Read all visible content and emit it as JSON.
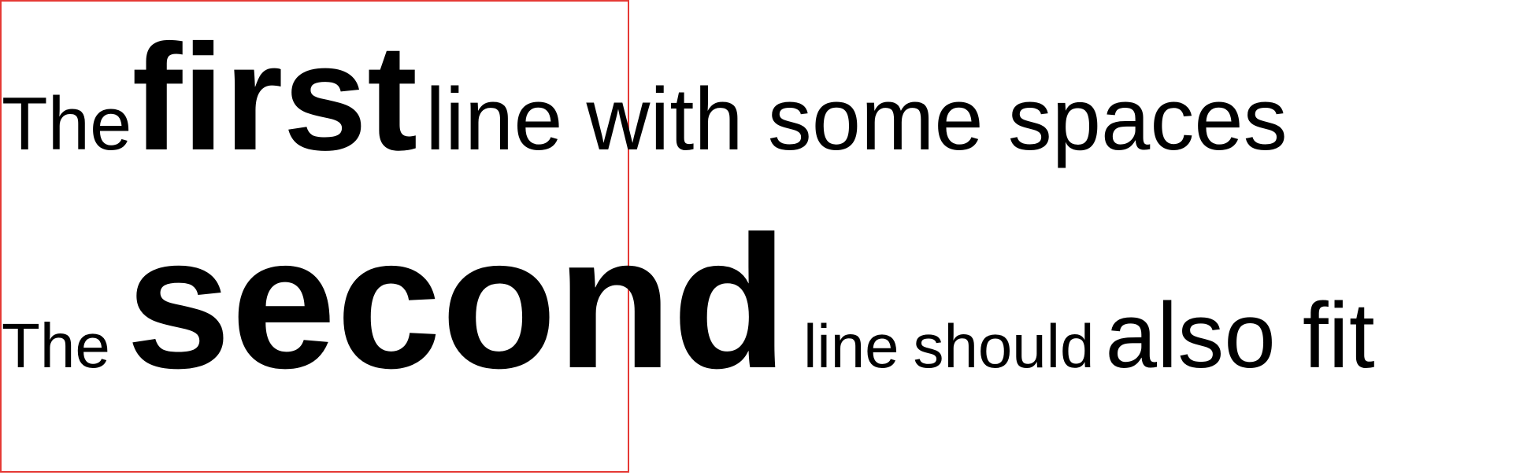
{
  "frame": {
    "border_color": "#e53935"
  },
  "line1": {
    "words": [
      "The",
      "first",
      "line",
      "with some spaces"
    ]
  },
  "line2": {
    "words": [
      "The",
      "second",
      "line",
      "should",
      "also",
      "fit"
    ]
  }
}
